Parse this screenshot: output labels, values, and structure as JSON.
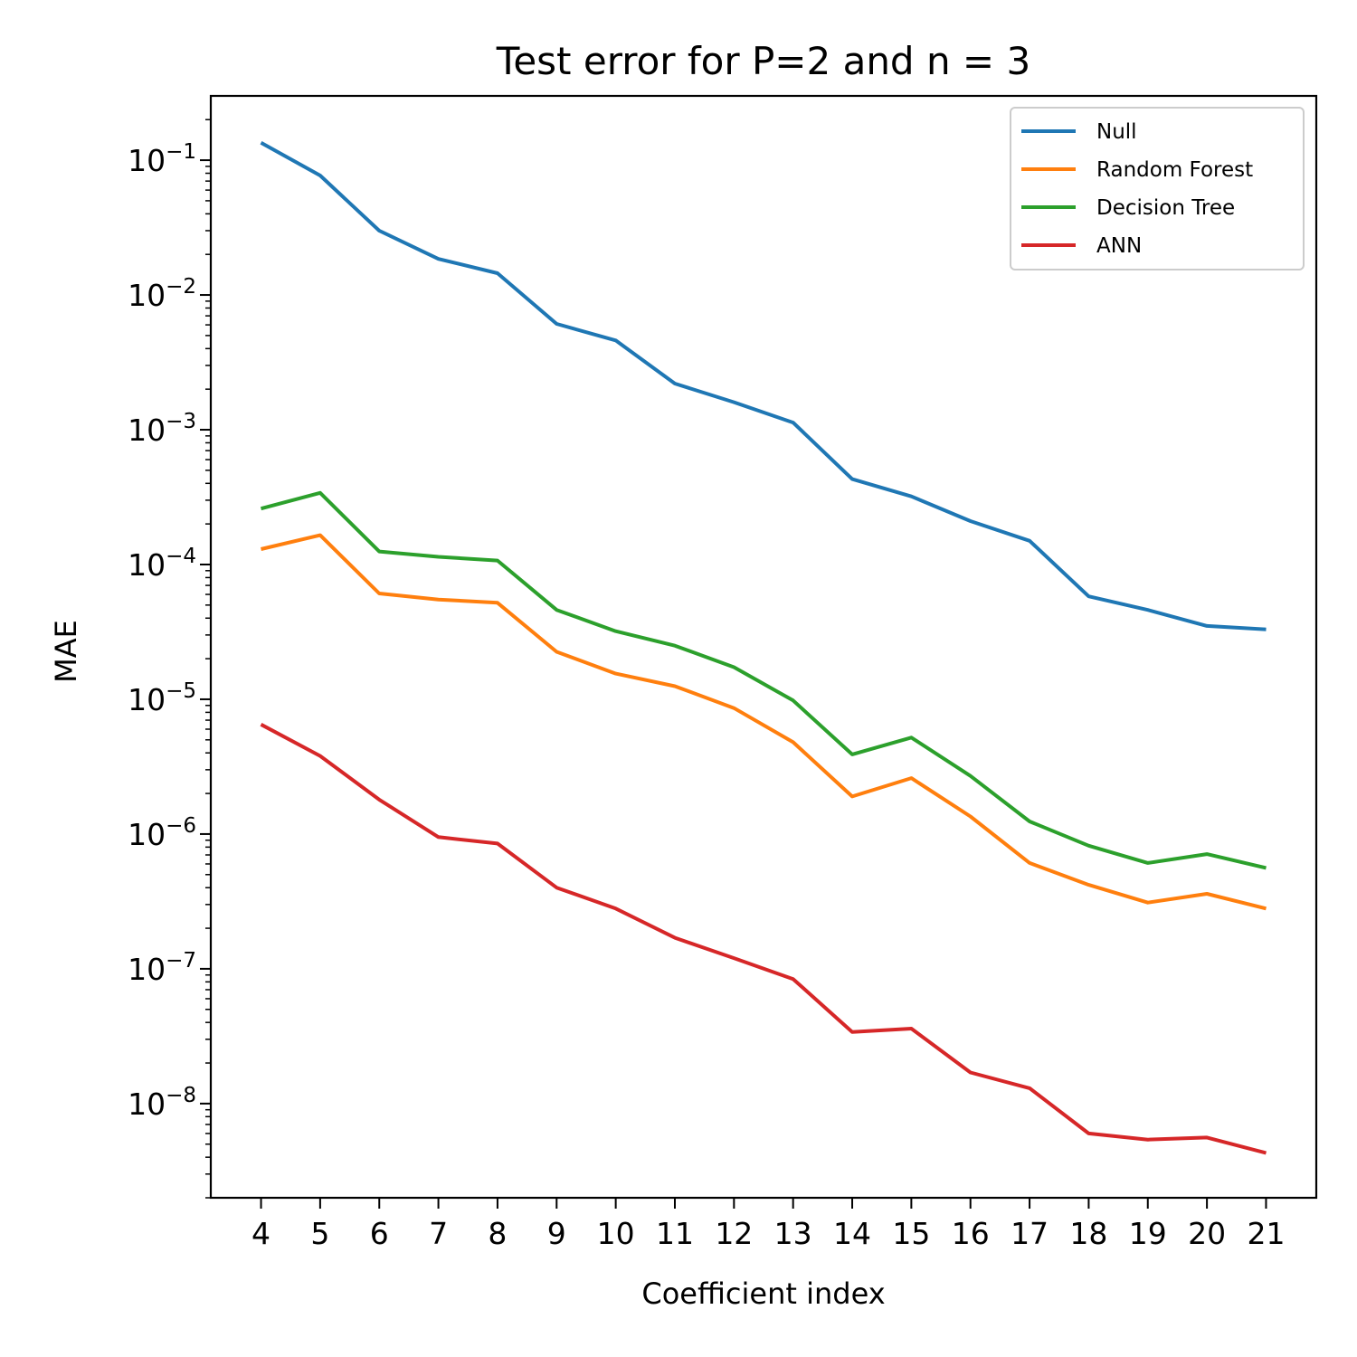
{
  "chart_data": {
    "type": "line",
    "title": "Test error for P=2 and n = 3",
    "xlabel": "Coefficient index",
    "ylabel": "MAE",
    "yscale": "log",
    "ylim": [
      2e-09,
      0.3
    ],
    "xlim": [
      3.15,
      21.85
    ],
    "x": [
      4,
      5,
      6,
      7,
      8,
      9,
      10,
      11,
      12,
      13,
      14,
      15,
      16,
      17,
      18,
      19,
      20,
      21
    ],
    "x_tick_labels": [
      "4",
      "5",
      "6",
      "7",
      "8",
      "9",
      "10",
      "11",
      "12",
      "13",
      "14",
      "15",
      "16",
      "17",
      "18",
      "19",
      "20",
      "21"
    ],
    "y_ticks": [
      {
        "value": 0.1,
        "base": "10",
        "exp": "−1"
      },
      {
        "value": 0.01,
        "base": "10",
        "exp": "−2"
      },
      {
        "value": 0.001,
        "base": "10",
        "exp": "−3"
      },
      {
        "value": 0.0001,
        "base": "10",
        "exp": "−4"
      },
      {
        "value": 1e-05,
        "base": "10",
        "exp": "−5"
      },
      {
        "value": 1e-06,
        "base": "10",
        "exp": "−6"
      },
      {
        "value": 1e-07,
        "base": "10",
        "exp": "−7"
      },
      {
        "value": 1e-08,
        "base": "10",
        "exp": "−8"
      }
    ],
    "grid": false,
    "legend_position": "top-right",
    "series": [
      {
        "name": "Null",
        "color": "#1f77b4",
        "values": [
          0.135,
          0.077,
          0.03,
          0.0185,
          0.0145,
          0.0061,
          0.0046,
          0.0022,
          0.0016,
          0.00113,
          0.00043,
          0.00032,
          0.00021,
          0.00015,
          5.8e-05,
          4.6e-05,
          3.5e-05,
          3.3e-05
        ]
      },
      {
        "name": "Random Forest",
        "color": "#ff7f0e",
        "values": [
          0.00013,
          0.000165,
          6.1e-05,
          5.5e-05,
          5.2e-05,
          2.25e-05,
          1.55e-05,
          1.25e-05,
          8.6e-06,
          4.8e-06,
          1.9e-06,
          2.6e-06,
          1.35e-06,
          6.1e-07,
          4.2e-07,
          3.1e-07,
          3.6e-07,
          2.8e-07
        ]
      },
      {
        "name": "Decision Tree",
        "color": "#2ca02c",
        "values": [
          0.00026,
          0.00034,
          0.000125,
          0.000114,
          0.000107,
          4.6e-05,
          3.2e-05,
          2.5e-05,
          1.73e-05,
          9.8e-06,
          3.9e-06,
          5.2e-06,
          2.7e-06,
          1.24e-06,
          8.2e-07,
          6.1e-07,
          7.1e-07,
          5.6e-07
        ]
      },
      {
        "name": "ANN",
        "color": "#d62728",
        "values": [
          6.5e-06,
          3.8e-06,
          1.8e-06,
          9.5e-07,
          8.5e-07,
          4e-07,
          2.8e-07,
          1.7e-07,
          1.2e-07,
          8.4e-08,
          3.4e-08,
          3.6e-08,
          1.7e-08,
          1.3e-08,
          6e-09,
          5.4e-09,
          5.6e-09,
          4.3e-09
        ]
      }
    ]
  }
}
